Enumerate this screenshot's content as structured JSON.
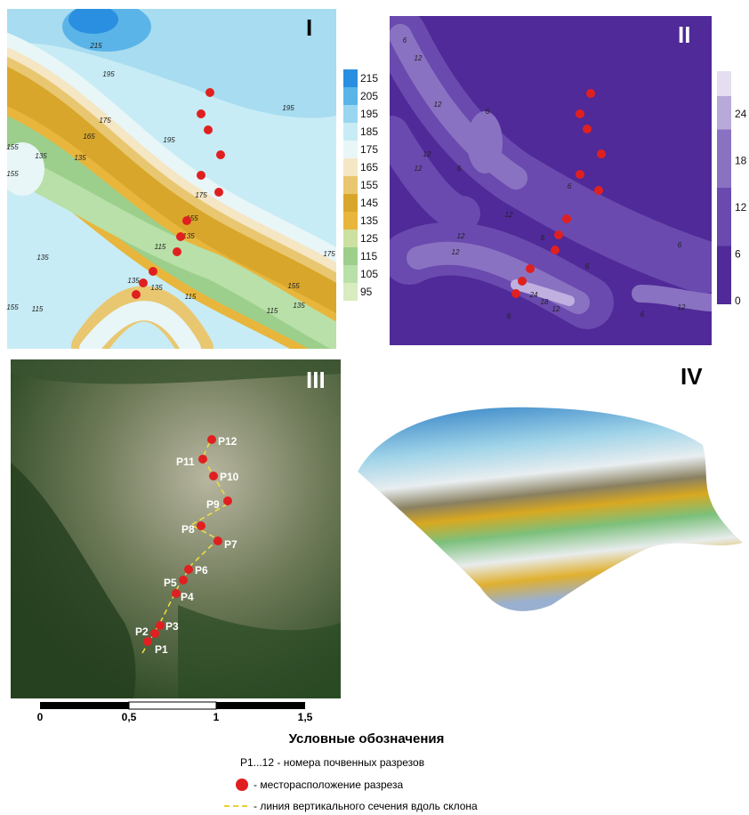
{
  "map1": {
    "label": "I",
    "scale": [
      "215",
      "205",
      "195",
      "185",
      "175",
      "165",
      "155",
      "145",
      "135",
      "125",
      "115",
      "105",
      "95"
    ],
    "contours": [
      "215",
      "195",
      "195",
      "195",
      "175",
      "175",
      "165",
      "155",
      "135",
      "155",
      "135",
      "155",
      "135",
      "115",
      "115",
      "135",
      "135",
      "135",
      "115",
      "175",
      "155",
      "135",
      "155",
      "115"
    ]
  },
  "map2": {
    "label": "II",
    "scale": [
      "24",
      "18",
      "12",
      "6",
      "0"
    ],
    "contours": [
      "6",
      "12",
      "12",
      "6",
      "12",
      "6",
      "12",
      "12",
      "12",
      "6",
      "6",
      "24",
      "18",
      "12",
      "6",
      "12",
      "6",
      "6",
      "12",
      "6"
    ]
  },
  "map3": {
    "label": "III",
    "points": [
      "P1",
      "P2",
      "P3",
      "P4",
      "P5",
      "P6",
      "P7",
      "P8",
      "P9",
      "P10",
      "P11",
      "P12"
    ]
  },
  "map4": {
    "label": "IV"
  },
  "scalebar": {
    "labels": [
      "0",
      "0,5",
      "1",
      "1,5"
    ]
  },
  "legend": {
    "title": "Условные обозначения",
    "items": [
      "Р1...12 - номера почвенных разрезов",
      "- месторасположение разреза",
      "- линия вертикального сечения вдоль склона"
    ]
  }
}
